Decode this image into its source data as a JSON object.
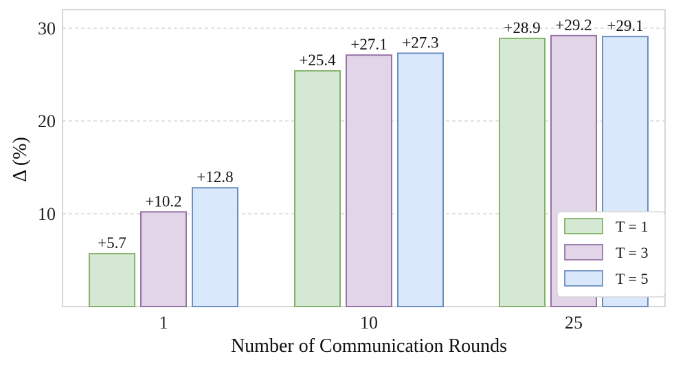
{
  "chart_data": {
    "type": "bar",
    "title": "",
    "xlabel": "Number of Communication Rounds",
    "ylabel": "Δ (%)",
    "categories": [
      "1",
      "10",
      "25"
    ],
    "series": [
      {
        "name": "T = 1",
        "values": [
          5.7,
          25.4,
          28.9
        ],
        "labels": [
          "+5.7",
          "+25.4",
          "+28.9"
        ],
        "fill": "#d5e8d4",
        "stroke": "#82b366"
      },
      {
        "name": "T = 3",
        "values": [
          10.2,
          27.1,
          29.2
        ],
        "labels": [
          "+10.2",
          "+27.1",
          "+29.2"
        ],
        "fill": "#e1d5e7",
        "stroke": "#9673a6"
      },
      {
        "name": "T = 5",
        "values": [
          12.8,
          27.3,
          29.1
        ],
        "labels": [
          "+12.8",
          "+27.3",
          "+29.1"
        ],
        "fill": "#dae8fc",
        "stroke": "#6c8ebf"
      }
    ],
    "ylim": [
      0,
      32
    ],
    "yticks": [
      "10",
      "20",
      "30"
    ],
    "grid": "y-dashed",
    "legend_position": "lower-right"
  }
}
